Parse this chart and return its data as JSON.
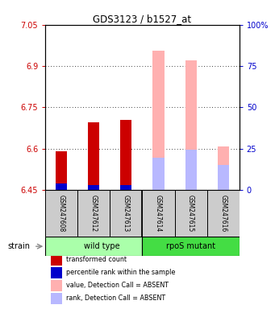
{
  "title": "GDS3123 / b1527_at",
  "samples": [
    "GSM247608",
    "GSM247612",
    "GSM247613",
    "GSM247614",
    "GSM247615",
    "GSM247616"
  ],
  "ylim_left": [
    6.45,
    7.05
  ],
  "ylim_right": [
    0,
    100
  ],
  "yticks_left": [
    6.45,
    6.6,
    6.75,
    6.9,
    7.05
  ],
  "yticks_right": [
    0,
    25,
    50,
    75,
    100
  ],
  "ytick_labels_left": [
    "6.45",
    "6.6",
    "6.75",
    "6.9",
    "7.05"
  ],
  "ytick_labels_right": [
    "0",
    "25",
    "50",
    "75",
    "100%"
  ],
  "base_value": 6.45,
  "red_values": [
    6.59,
    6.695,
    6.705,
    6.45,
    6.45,
    6.45
  ],
  "blue_values": [
    6.475,
    6.468,
    6.468,
    6.45,
    6.45,
    6.45
  ],
  "pink_values": [
    6.45,
    6.45,
    6.45,
    6.955,
    6.92,
    6.607
  ],
  "lightblue_values": [
    6.45,
    6.45,
    6.45,
    6.567,
    6.597,
    6.54
  ],
  "absent_mask": [
    false,
    false,
    false,
    true,
    true,
    true
  ],
  "bar_width": 0.35,
  "color_red": "#cc0000",
  "color_blue": "#0000cc",
  "color_pink": "#ffb0b0",
  "color_lightblue": "#b8b8ff",
  "tick_color_left": "#cc0000",
  "tick_color_right": "#0000cc",
  "label_strain": "strain",
  "label_wildtype": "wild type",
  "label_rpos": "rpoS mutant",
  "group_boundary": 3,
  "legend_items": [
    {
      "color": "#cc0000",
      "label": "transformed count"
    },
    {
      "color": "#0000cc",
      "label": "percentile rank within the sample"
    },
    {
      "color": "#ffb0b0",
      "label": "value, Detection Call = ABSENT"
    },
    {
      "color": "#b8b8ff",
      "label": "rank, Detection Call = ABSENT"
    }
  ]
}
